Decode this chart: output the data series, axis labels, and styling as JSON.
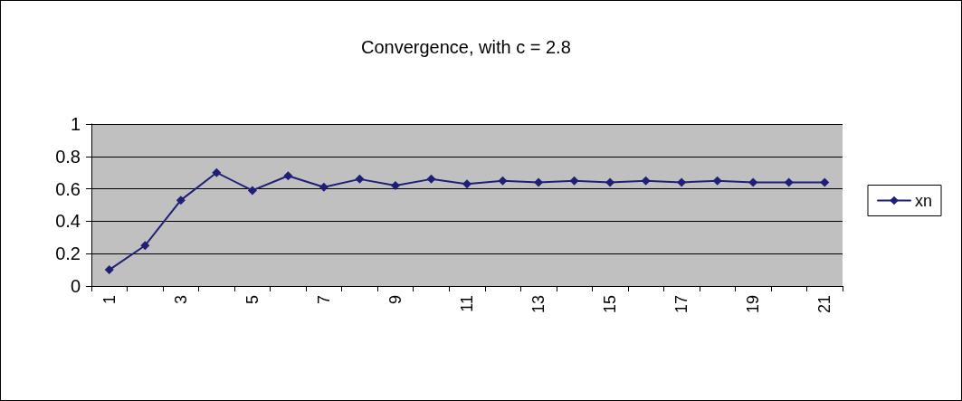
{
  "chart_data": {
    "type": "line",
    "title": "Convergence, with c = 2.8",
    "categories": [
      "1",
      null,
      "3",
      null,
      "5",
      null,
      "7",
      null,
      "9",
      null,
      "11",
      null,
      "13",
      null,
      "15",
      null,
      "17",
      null,
      "19",
      null,
      "21"
    ],
    "series": [
      {
        "name": "xn",
        "color": "#1f1f78",
        "values": [
          0.1,
          0.25,
          0.53,
          0.7,
          0.59,
          0.68,
          0.61,
          0.66,
          0.62,
          0.66,
          0.63,
          0.65,
          0.64,
          0.65,
          0.64,
          0.65,
          0.64,
          0.65,
          0.64,
          0.64,
          0.64
        ]
      }
    ],
    "ylim": [
      0,
      1
    ],
    "yticks": [
      0,
      0.2,
      0.4,
      0.6,
      0.8,
      1
    ],
    "grid": "y",
    "legend": "right",
    "marker": "diamond",
    "line_style": "solid"
  }
}
